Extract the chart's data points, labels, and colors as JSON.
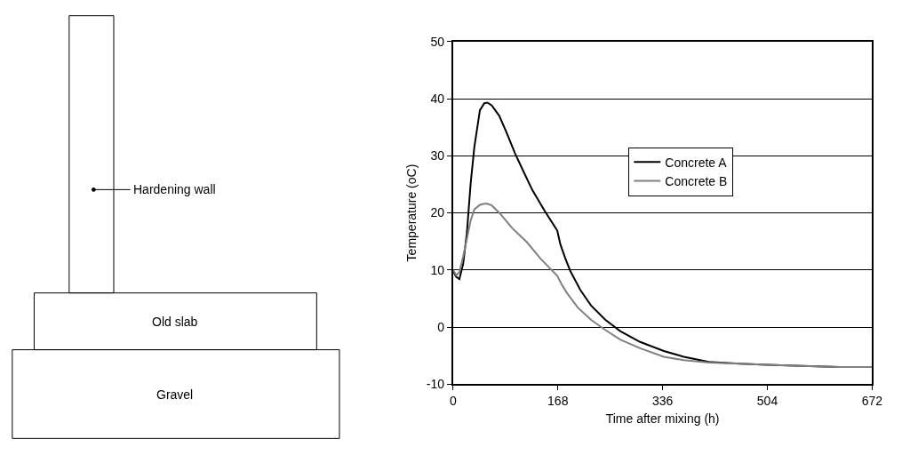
{
  "chart_data": [
    {
      "type": "other",
      "annotations": [
        "Hardening wall",
        "Old slab",
        "Gravel"
      ]
    },
    {
      "type": "line",
      "xlabel": "Time after mixing (h)",
      "ylabel": "Temperature (oC)",
      "xlim": [
        0,
        672
      ],
      "xticks": [
        0,
        168,
        336,
        504,
        672
      ],
      "ylim": [
        -10,
        50
      ],
      "yticks": [
        -10,
        0,
        10,
        20,
        30,
        40,
        50
      ],
      "grid": "y",
      "legend": "center",
      "marker": "none",
      "line_style": "solid",
      "series": [
        {
          "name": "Concrete A",
          "color": "#000000",
          "x": [
            0,
            5,
            10,
            16,
            22,
            28,
            34,
            43,
            50,
            55,
            62,
            74,
            86,
            99,
            113,
            127,
            147,
            167,
            172,
            180,
            188,
            204,
            221,
            244,
            268,
            300,
            338,
            370,
            410,
            460,
            504,
            560,
            620,
            672
          ],
          "values": [
            9.8,
            8.8,
            8.4,
            11,
            16.4,
            25,
            31.5,
            38,
            39.2,
            39.3,
            38.8,
            37,
            34,
            30.5,
            27.2,
            24,
            20.3,
            16.9,
            14.5,
            12,
            9.8,
            6.5,
            3.8,
            1.3,
            -0.7,
            -2.6,
            -4.2,
            -5.2,
            -6.1,
            -6.4,
            -6.6,
            -6.8,
            -7,
            -7
          ]
        },
        {
          "name": "Concrete B",
          "color": "#808080",
          "x": [
            0,
            5,
            10,
            16,
            22,
            28,
            34,
            43,
            50,
            55,
            62,
            75,
            95,
            118,
            140,
            167,
            175,
            183,
            200,
            221,
            244,
            268,
            300,
            338,
            370,
            410,
            460,
            504,
            560,
            620,
            672
          ],
          "values": [
            10,
            9.1,
            9.6,
            12.3,
            15.4,
            18.6,
            20.6,
            21.4,
            21.6,
            21.6,
            21.3,
            19.9,
            17.3,
            14.9,
            12,
            9,
            7.3,
            5.9,
            3.4,
            1.3,
            -0.5,
            -2.2,
            -3.7,
            -5.2,
            -5.8,
            -6.2,
            -6.4,
            -6.6,
            -6.8,
            -7,
            -7
          ]
        }
      ]
    }
  ]
}
